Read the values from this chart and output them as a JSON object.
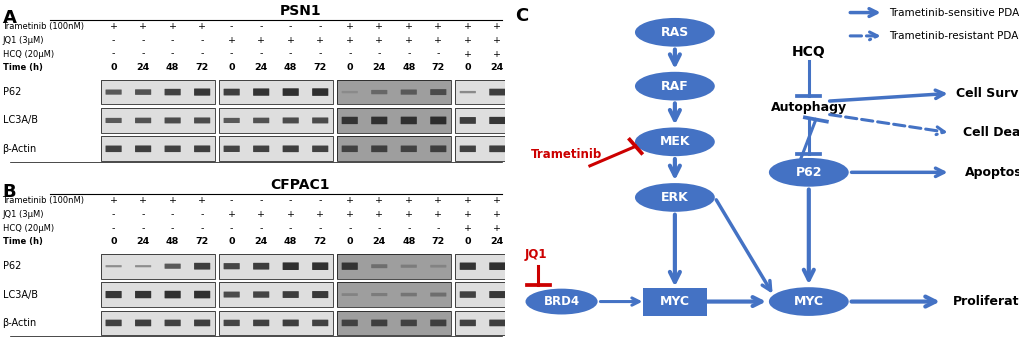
{
  "panel_A_title": "PSN1",
  "panel_B_title": "CFPAC1",
  "treatment_rows": {
    "trametinib": "Trametinib (100nM)",
    "jq1": "JQ1 (3μM)",
    "hcq": "HCQ (20μM)",
    "time": "Time (h)"
  },
  "treatment_values": {
    "trametinib": [
      "+",
      "+",
      "+",
      "+",
      "-",
      "-",
      "-",
      "-",
      "+",
      "+",
      "+",
      "+",
      "+",
      "+"
    ],
    "jq1": [
      "-",
      "-",
      "-",
      "-",
      "+",
      "+",
      "+",
      "+",
      "+",
      "+",
      "+",
      "+",
      "+",
      "+"
    ],
    "hcq": [
      "-",
      "-",
      "-",
      "-",
      "-",
      "-",
      "-",
      "-",
      "-",
      "-",
      "-",
      "-",
      "+",
      "+"
    ],
    "time": [
      "0",
      "24",
      "48",
      "72",
      "0",
      "24",
      "48",
      "72",
      "0",
      "24",
      "48",
      "72",
      "0",
      "24"
    ]
  },
  "blot_labels": [
    "P62",
    "LC3A/B",
    "β-Actin"
  ],
  "node_color": "#4472C4",
  "node_text_color": "white",
  "arrow_color": "#4472C4",
  "red_color": "#CC0000",
  "legend_solid": "Trametinib-sensitive PDAC",
  "legend_dashed": "Trametinib-resistant PDAC",
  "bg_color": "#FFFFFF"
}
